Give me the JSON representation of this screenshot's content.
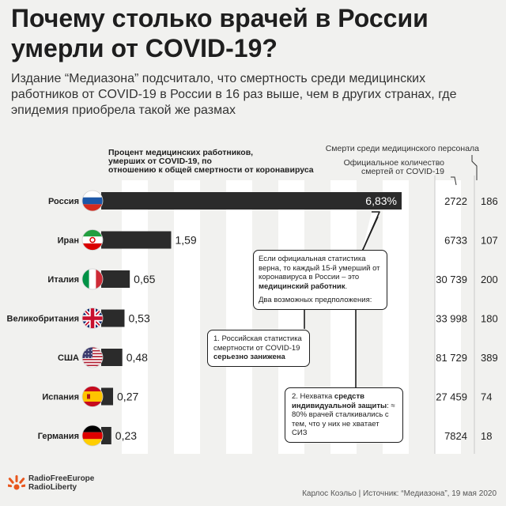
{
  "header": {
    "title": "Почему столько врачей в России умерли от COVID-19?",
    "subtitle": "Издание “Медиазона” подсчитало, что смертность среди медицинских работников от COVID-19 в России в 16 раз выше, чем в других странах, где эпидемия приобрела такой же размах"
  },
  "chart_data": {
    "type": "bar",
    "title": "Процент медицинских работников, умерших от COVID-19, по отношению к общей смертности от коронавируса",
    "categories": [
      "Россия",
      "Иран",
      "Италия",
      "Великобритания",
      "США",
      "Испания",
      "Германия"
    ],
    "values": [
      6.83,
      1.59,
      0.65,
      0.53,
      0.48,
      0.27,
      0.23
    ],
    "value_labels": [
      "6,83%",
      "1,59",
      "0,65",
      "0,53",
      "0,48",
      "0,27",
      "0,23"
    ],
    "xlim": [
      0,
      6.83
    ],
    "columns": [
      {
        "header": "Официальное количество смертей от COVID-19",
        "values": [
          "2722",
          "6733",
          "30 739",
          "33 998",
          "81 729",
          "27 459",
          "7824"
        ]
      },
      {
        "header": "Смерти среди медицинского персонала",
        "values": [
          "186",
          "107",
          "200",
          "180",
          "389",
          "74",
          "18"
        ]
      }
    ],
    "flags": [
      "russia-flag",
      "iran-flag",
      "italy-flag",
      "uk-flag",
      "usa-flag",
      "spain-flag",
      "germany-flag"
    ]
  },
  "callouts": {
    "c1_a": "Если официальная статистика верна, то каждый 15-й умерший от коронавируса в России – это ",
    "c1_b": "медицинский работник",
    "c1_c": ".",
    "c1_d": "Два возможных предположения:",
    "c2_a": "1. Российская статистика смертности от COVID-19 ",
    "c2_b": "серьезно занижена",
    "c3_a": "2. Нехватка ",
    "c3_b": "средств индивидуальной защиты",
    "c3_c": ": ≈ 80% врачей сталкивались с тем, что у них не хватает СИЗ"
  },
  "footer": {
    "logo_line1": "RadioFreeEurope",
    "logo_line2": "RadioLiberty",
    "source": "Карлос Коэльо | Источник: “Медиазона”, 19 мая 2020"
  },
  "colors": {
    "bar": "#2b2b2b",
    "stripe": "#ffffff",
    "background": "#f1f1ef",
    "logo": "#e8561d"
  }
}
